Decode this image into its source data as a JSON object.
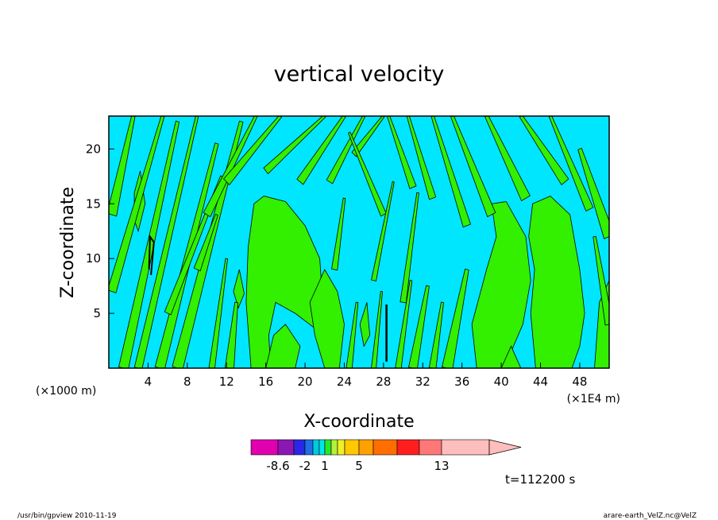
{
  "chart_data": {
    "type": "heatmap",
    "title": "vertical velocity",
    "xlabel": "X-coordinate",
    "ylabel": "Z-coordinate",
    "x_unit_left": "(×1000 m)",
    "x_unit_right": "(×1E4 m)",
    "xlim": [
      0,
      51
    ],
    "ylim": [
      0,
      23
    ],
    "x_ticks": [
      4,
      8,
      12,
      16,
      20,
      24,
      28,
      32,
      36,
      40,
      44,
      48
    ],
    "y_ticks": [
      5,
      10,
      15,
      20
    ],
    "legend": "bottom",
    "time_label": "t=112200 s",
    "colorbar": {
      "colors": [
        "#e000b0",
        "#8c18b4",
        "#2828e6",
        "#1f6ee6",
        "#00c8e6",
        "#00e6e6",
        "#28e628",
        "#b4f03c",
        "#f0f028",
        "#ffc800",
        "#ffa000",
        "#ff6e00",
        "#ff1e1e",
        "#ff7878",
        "#ffbebe"
      ],
      "labels": [
        "-8.6",
        "-2",
        "1",
        "5",
        "13"
      ],
      "extends": "max"
    },
    "field_colors": {
      "negative": "#00e6ff",
      "positive": "#32f000",
      "contour": "#000000"
    }
  },
  "footer": {
    "left": "/usr/bin/gpview   2010-11-19",
    "right": "arare-earth_VelZ.nc@VelZ"
  }
}
